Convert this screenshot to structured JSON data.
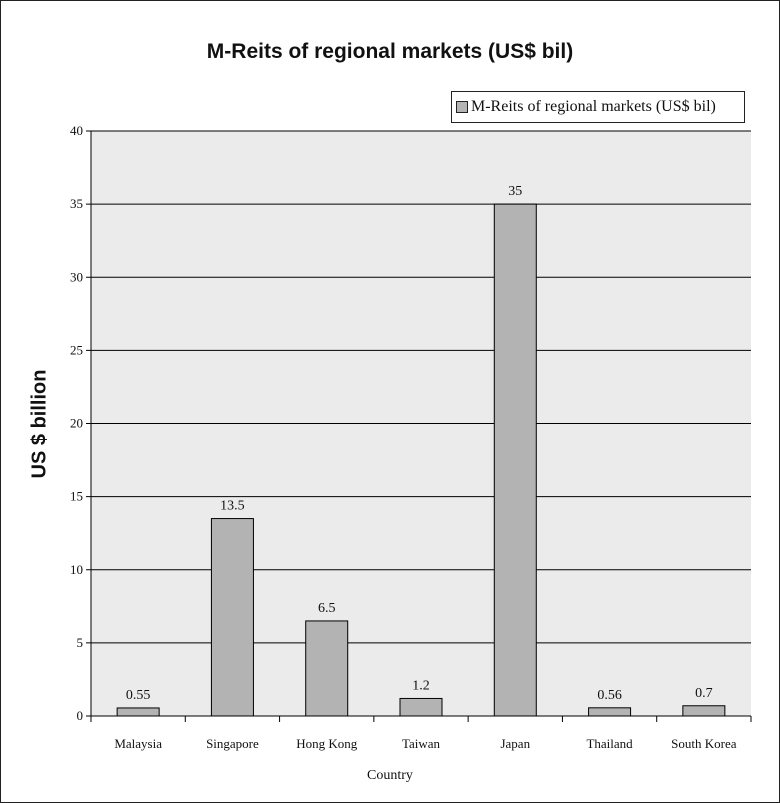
{
  "chart_data": {
    "type": "bar",
    "title": "M-Reits of regional markets (US$ bil)",
    "xlabel": "Country",
    "ylabel": "US $ billion",
    "categories": [
      "Malaysia",
      "Singapore",
      "Hong Kong",
      "Taiwan",
      "Japan",
      "Thailand",
      "South Korea"
    ],
    "series": [
      {
        "name": "M-Reits of regional markets (US$ bil)",
        "values": [
          0.55,
          13.5,
          6.5,
          1.2,
          35,
          0.56,
          0.7
        ],
        "data_labels": [
          "0.55",
          "13.5",
          "6.5",
          "1.2",
          "35",
          "0.56",
          "0.7"
        ]
      }
    ],
    "ylim": [
      0,
      40
    ],
    "yticks": [
      "0",
      "5",
      "10",
      "15",
      "20",
      "25",
      "30",
      "35",
      "40"
    ],
    "grid": true,
    "legend_position": "top-right",
    "colors": {
      "bar_fill": "#b3b3b3",
      "plot_background": "#ebebeb",
      "gridline": "#000000"
    }
  }
}
